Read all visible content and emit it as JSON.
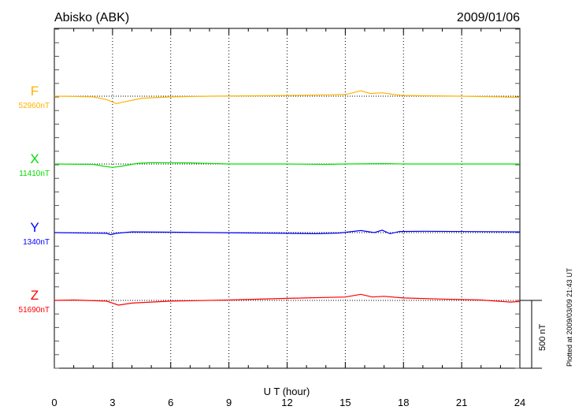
{
  "header": {
    "station": "Abisko (ABK)",
    "date": "2009/01/06"
  },
  "footer": {
    "plotted": "Plotted at 2009/03/09 21:43 UT"
  },
  "scale_bar": {
    "label": "500 nT",
    "value_nT": 500
  },
  "chart_data": {
    "type": "line",
    "xlabel": "U T (hour)",
    "xlim": [
      0,
      24
    ],
    "xticks": [
      "0",
      "3",
      "6",
      "9",
      "12",
      "15",
      "18",
      "21",
      "24"
    ],
    "grid": "vertical dotted every 3 hours; dotted baseline per series",
    "series": [
      {
        "name": "F",
        "baseline_label": "52960nT",
        "color": "#ffb300",
        "x": [
          0,
          1,
          2,
          2.7,
          3.2,
          3.5,
          4.5,
          6,
          8,
          12,
          14,
          15,
          15.8,
          16.3,
          16.9,
          17.5,
          18,
          21,
          23,
          24
        ],
        "y": [
          0,
          -2,
          -5,
          -25,
          -55,
          -45,
          -15,
          -5,
          0,
          5,
          10,
          12,
          40,
          20,
          25,
          12,
          5,
          0,
          -5,
          -10
        ]
      },
      {
        "name": "X",
        "baseline_label": "11410nT",
        "color": "#00e000",
        "x": [
          0,
          2,
          2.5,
          3,
          3.5,
          4.3,
          5,
          7,
          9,
          12,
          14,
          15,
          17,
          18,
          24
        ],
        "y": [
          0,
          -3,
          -15,
          -25,
          -15,
          5,
          10,
          8,
          0,
          0,
          -3,
          0,
          3,
          0,
          0
        ]
      },
      {
        "name": "Y",
        "baseline_label": "1340nT",
        "color": "#0000ff",
        "x": [
          0,
          2.7,
          2.9,
          3.2,
          4,
          6,
          12,
          13.5,
          14.7,
          15.8,
          16.5,
          16.9,
          17.3,
          17.8,
          19,
          24
        ],
        "y": [
          0,
          -5,
          -15,
          -5,
          5,
          3,
          -5,
          -8,
          -3,
          15,
          0,
          18,
          -8,
          8,
          10,
          5
        ]
      },
      {
        "name": "Z",
        "baseline_label": "51690nT",
        "color": "#ff0000",
        "x": [
          0,
          1,
          2.7,
          3.3,
          4,
          6,
          9,
          12,
          15,
          15.8,
          16.4,
          17,
          18,
          20,
          22,
          23.5,
          24
        ],
        "y": [
          0,
          3,
          -5,
          -35,
          -20,
          -5,
          3,
          15,
          25,
          45,
          25,
          30,
          18,
          10,
          3,
          -12,
          -8
        ]
      }
    ]
  }
}
